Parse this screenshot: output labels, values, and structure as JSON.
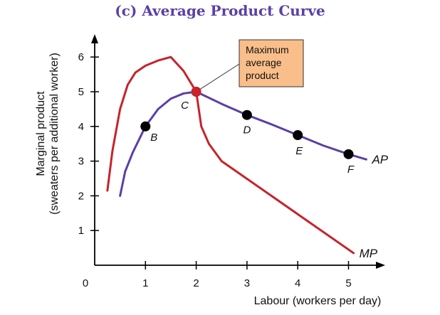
{
  "chart_data": {
    "type": "line",
    "title": "(c) Average Product Curve",
    "xlabel": "Labour (workers per day)",
    "ylabel_lines": [
      "Marginal product",
      "(sweaters per additional worker)"
    ],
    "xlim": [
      0,
      5.6
    ],
    "ylim": [
      0,
      6.8
    ],
    "x_ticks": [
      0,
      1,
      2,
      3,
      4,
      5
    ],
    "y_ticks": [
      1,
      2,
      3,
      4,
      5,
      6
    ],
    "series": [
      {
        "name": "AP",
        "color": "#5b3fa6",
        "x": [
          0.5,
          0.6,
          0.75,
          1.0,
          1.25,
          1.5,
          1.75,
          2.0,
          2.5,
          3.0,
          3.5,
          4.0,
          4.5,
          5.0,
          5.35
        ],
        "y": [
          2.0,
          2.7,
          3.25,
          4.0,
          4.5,
          4.8,
          4.95,
          5.0,
          4.65,
          4.33,
          4.05,
          3.75,
          3.45,
          3.2,
          3.05
        ]
      },
      {
        "name": "MP",
        "color": "#c8222b",
        "x": [
          0.25,
          0.35,
          0.5,
          0.65,
          0.8,
          1.0,
          1.25,
          1.5,
          1.75,
          2.0,
          2.1,
          2.25,
          2.5,
          5.1
        ],
        "y": [
          2.15,
          3.3,
          4.5,
          5.2,
          5.55,
          5.75,
          5.9,
          6.0,
          5.6,
          5.0,
          4.0,
          3.5,
          3.0,
          0.35
        ]
      }
    ],
    "points": [
      {
        "label": "B",
        "x": 1,
        "y": 4.0,
        "color": "#000000"
      },
      {
        "label": "C",
        "x": 2,
        "y": 5.0,
        "color": "#c8222b"
      },
      {
        "label": "D",
        "x": 3,
        "y": 4.33,
        "color": "#000000"
      },
      {
        "label": "E",
        "x": 4,
        "y": 3.75,
        "color": "#000000"
      },
      {
        "label": "F",
        "x": 5,
        "y": 3.2,
        "color": "#000000"
      }
    ],
    "annotation": {
      "lines": [
        "Maximum",
        "average",
        "product"
      ],
      "fill": "#f9be8a",
      "points_to": "C"
    },
    "axis_color": "#000000"
  }
}
